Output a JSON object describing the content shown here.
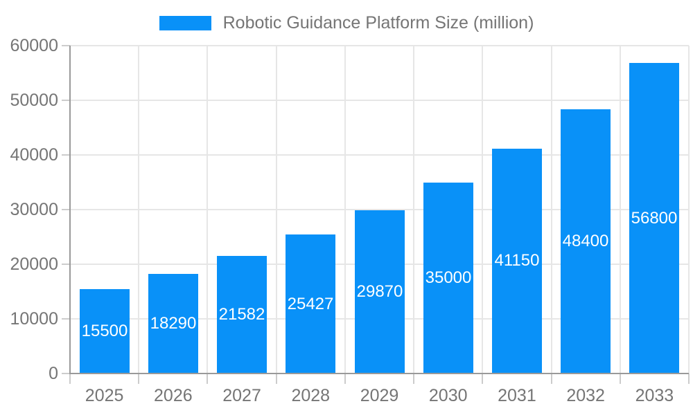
{
  "legend": {
    "label": "Robotic Guidance Platform Size (million)",
    "swatch_color": "#0991f8"
  },
  "chart_data": {
    "type": "bar",
    "title": "Robotic Guidance Platform Size (million)",
    "categories": [
      "2025",
      "2026",
      "2027",
      "2028",
      "2029",
      "2030",
      "2031",
      "2032",
      "2033"
    ],
    "values": [
      15500,
      18290,
      21582,
      25427,
      29870,
      35000,
      41150,
      48400,
      56800
    ],
    "series": [
      {
        "name": "Robotic Guidance Platform Size (million)",
        "values": [
          15500,
          18290,
          21582,
          25427,
          29870,
          35000,
          41150,
          48400,
          56800
        ]
      }
    ],
    "xlabel": "",
    "ylabel": "",
    "ylim": [
      0,
      60000
    ],
    "y_ticks": [
      0,
      10000,
      20000,
      30000,
      40000,
      50000,
      60000
    ],
    "grid": true,
    "legend_position": "top",
    "value_labels": "inside-center",
    "colors": {
      "bar": "#0991f8",
      "value_label": "#ffffff",
      "axis_text": "#757575",
      "gridline": "#e6e6e6",
      "axis_line": "#999999",
      "tick": "#cccccc",
      "background": "#ffffff"
    }
  }
}
